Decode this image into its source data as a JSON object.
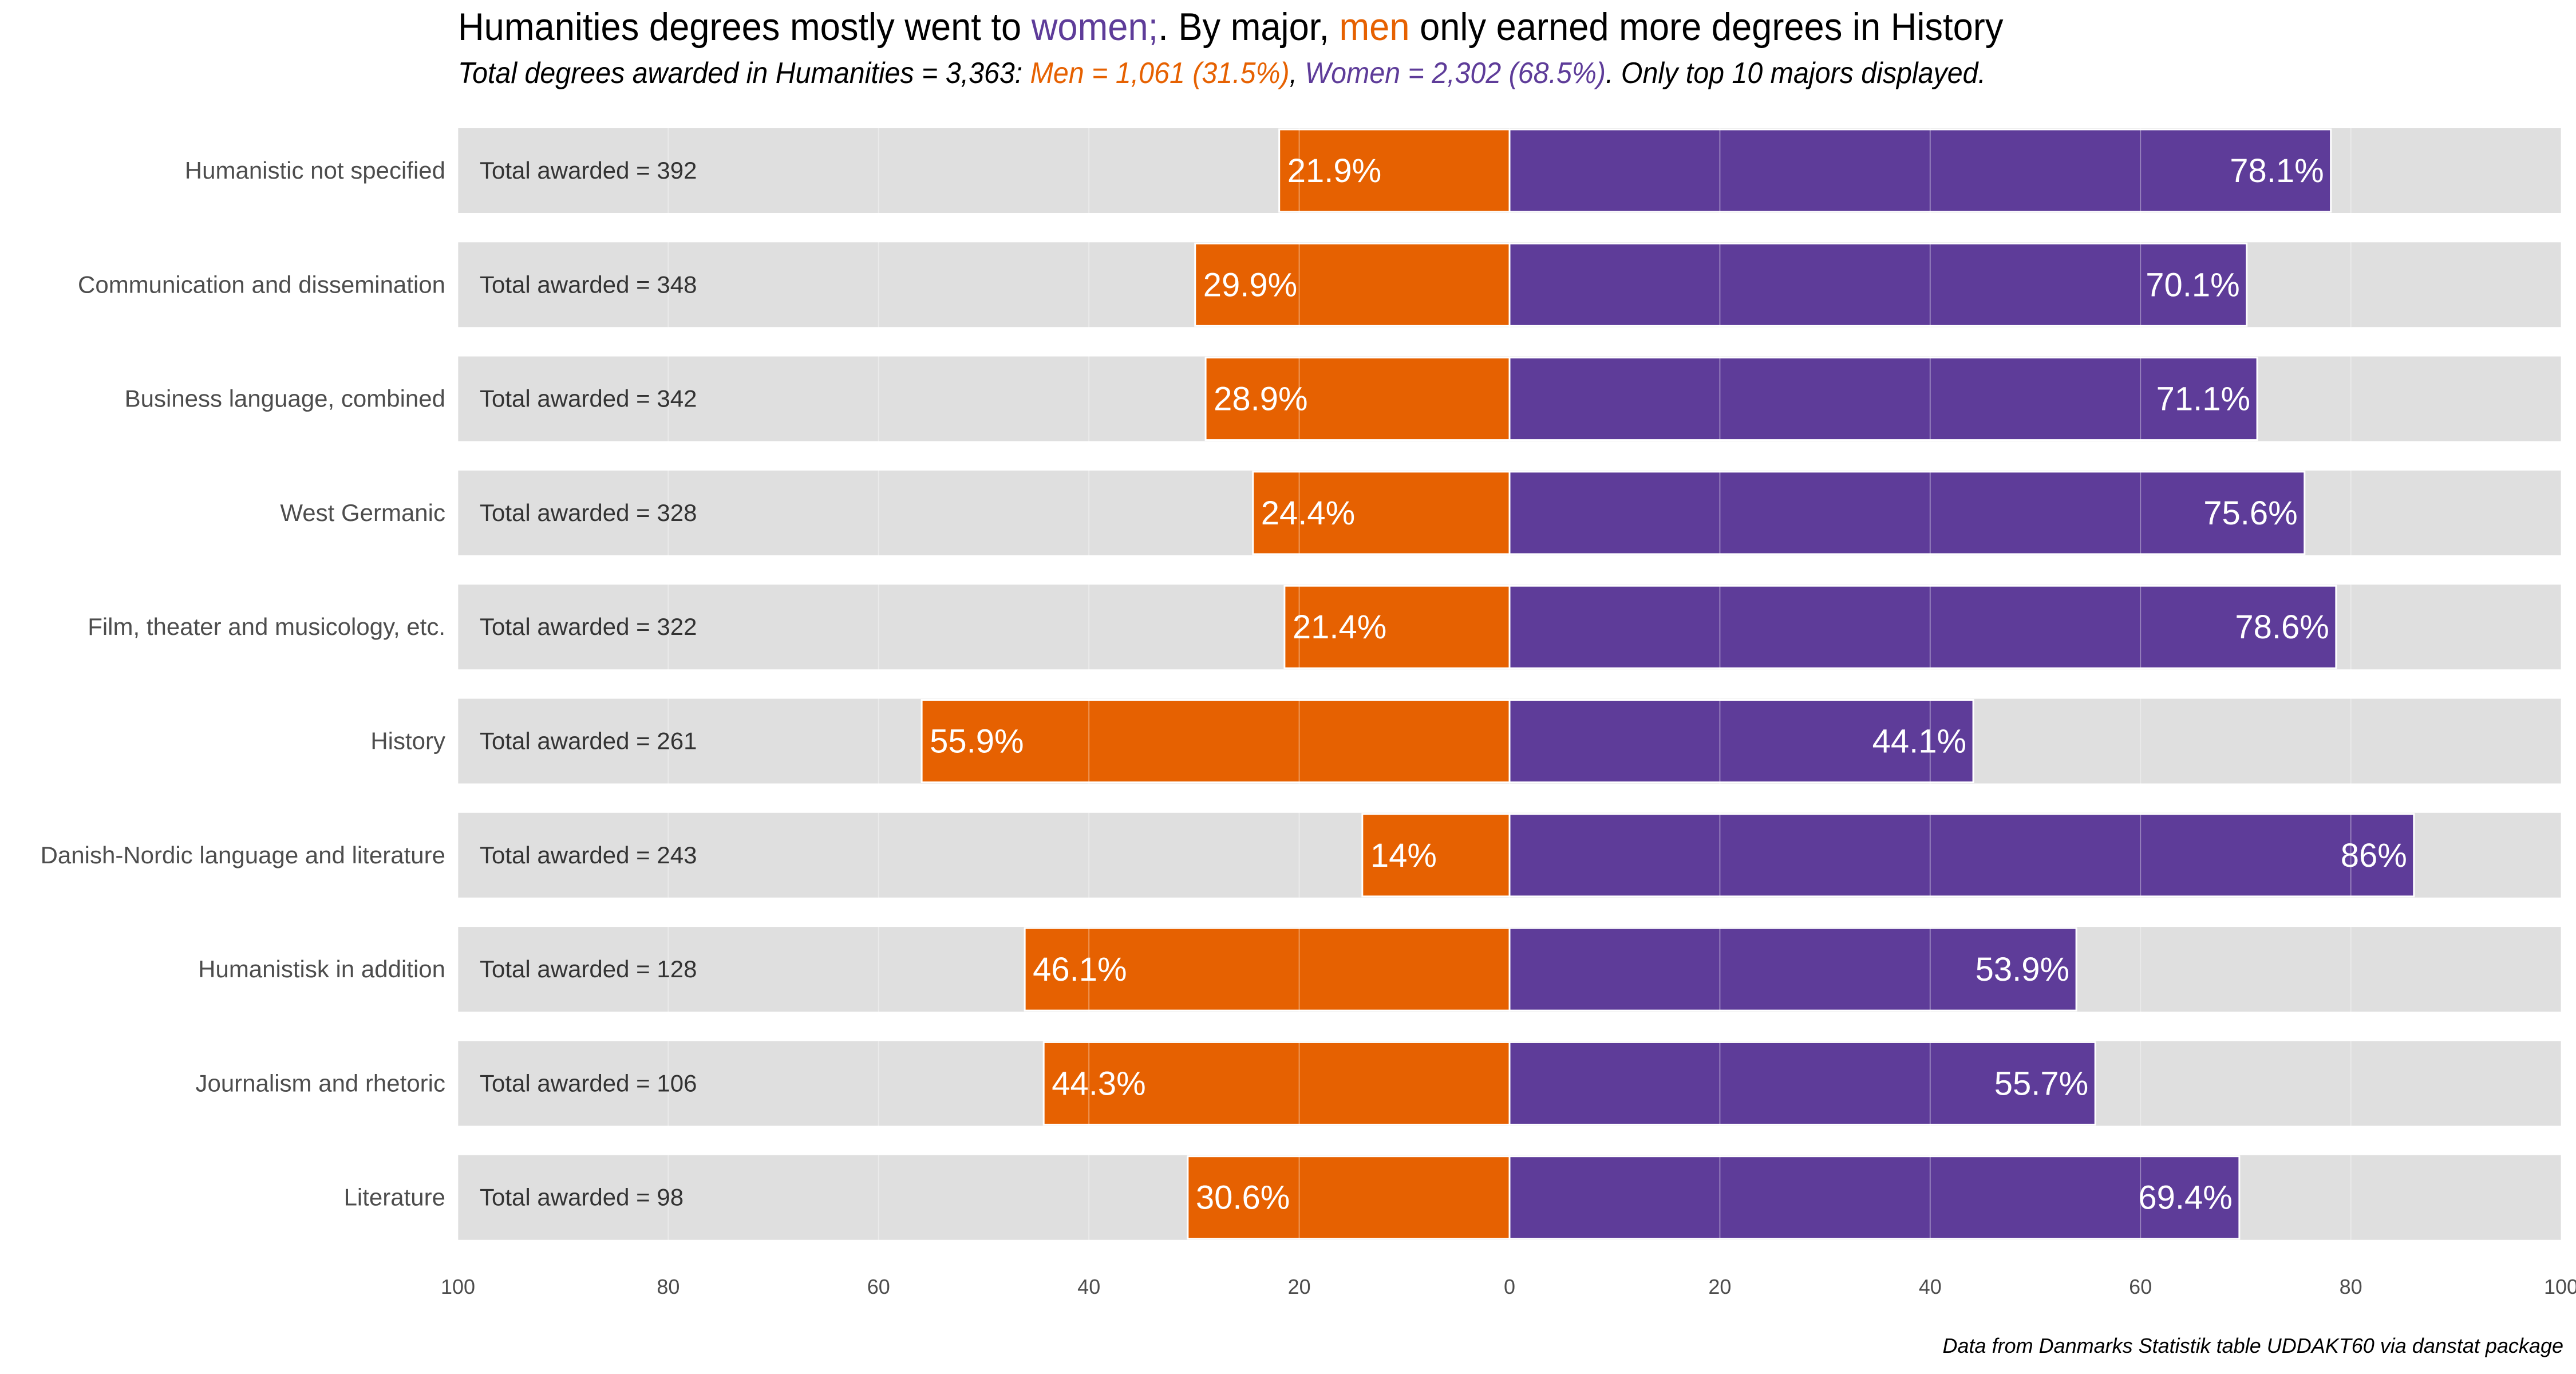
{
  "colors": {
    "men": "#e66101",
    "women": "#5e3c99",
    "background_bar": "#dfdfdf",
    "gridline": "#ebebeb",
    "text": "#4d4d4d"
  },
  "title": {
    "part1": "Humanities degrees mostly went to ",
    "women_word": "women;",
    "part2": ". By major, ",
    "men_word": "men",
    "part3": " only earned more degrees in History"
  },
  "subtitle": {
    "part1": "Total degrees awarded in Humanities = 3,363: ",
    "men": "Men = 1,061 (31.5%)",
    "sep": ", ",
    "women": "Women = 2,302 (68.5%)",
    "part2": ". Only top 10 majors displayed."
  },
  "caption": "Data from Danmarks Statistik table UDDAKT60 via danstat package",
  "chart_data": {
    "type": "bar",
    "orientation": "horizontal-diverging",
    "title": "Humanities degrees mostly went to women;. By major, men only earned more degrees in History",
    "subtitle": "Total degrees awarded in Humanities = 3,363: Men = 1,061 (31.5%), Women = 2,302 (68.5%). Only top 10 majors displayed.",
    "xlabel": "",
    "ylabel": "",
    "xlim": [
      -100,
      100
    ],
    "x_ticks": [
      100,
      80,
      60,
      40,
      20,
      0,
      20,
      40,
      60,
      80,
      100
    ],
    "grid": true,
    "legend": "none",
    "total_label_prefix": "Total awarded = ",
    "categories": [
      "Humanistic not specified",
      "Communication and dissemination",
      "Business language, combined",
      "West Germanic",
      "Film, theater and musicology, etc.",
      "History",
      "Danish-Nordic language and literature",
      "Humanistisk in addition",
      "Journalism and rhetoric",
      "Literature"
    ],
    "totals": [
      392,
      348,
      342,
      328,
      322,
      261,
      243,
      128,
      106,
      98
    ],
    "series": [
      {
        "name": "Men",
        "color": "#e66101",
        "values": [
          21.9,
          29.9,
          28.9,
          24.4,
          21.4,
          55.9,
          14,
          46.1,
          44.3,
          30.6
        ],
        "labels": [
          "21.9%",
          "29.9%",
          "28.9%",
          "24.4%",
          "21.4%",
          "55.9%",
          "14%",
          "46.1%",
          "44.3%",
          "30.6%"
        ]
      },
      {
        "name": "Women",
        "color": "#5e3c99",
        "values": [
          78.1,
          70.1,
          71.1,
          75.6,
          78.6,
          44.1,
          86,
          53.9,
          55.7,
          69.4
        ],
        "labels": [
          "78.1%",
          "70.1%",
          "71.1%",
          "75.6%",
          "78.6%",
          "44.1%",
          "86%",
          "53.9%",
          "55.7%",
          "69.4%"
        ]
      }
    ],
    "caption": "Data from Danmarks Statistik table UDDAKT60 via danstat package"
  }
}
